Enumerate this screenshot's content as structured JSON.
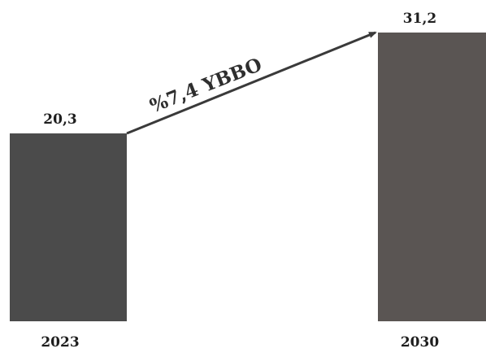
{
  "chart_data": {
    "type": "bar",
    "categories": [
      "2023",
      "2030"
    ],
    "values": [
      20.3,
      31.2
    ],
    "value_labels": [
      "20,3",
      "31,2"
    ],
    "colors": [
      "#4b4b4b",
      "#5a5553"
    ],
    "annotation": "%7,4 YBBO",
    "title": "",
    "xlabel": "",
    "ylabel": "",
    "ylim": [
      0,
      31.2
    ],
    "grid": false,
    "legend": "none"
  }
}
